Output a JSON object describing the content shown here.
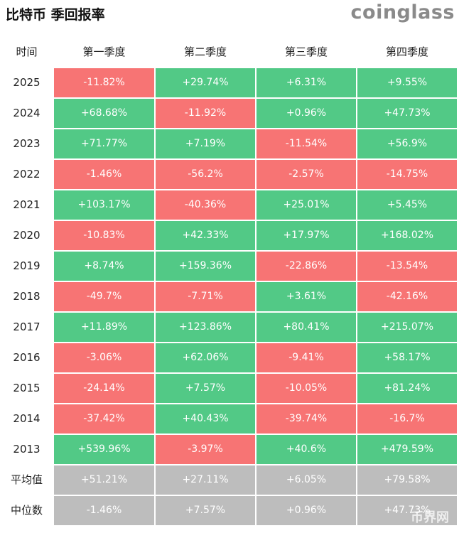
{
  "header": {
    "title": "比特币 季回报率",
    "logo": "coinglass"
  },
  "table": {
    "columns": [
      "时间",
      "第一季度",
      "第二季度",
      "第三季度",
      "第四季度"
    ],
    "rows": [
      [
        "2025",
        "-11.82%",
        "+29.74%",
        "+6.31%",
        "+9.55%"
      ],
      [
        "2024",
        "+68.68%",
        "-11.92%",
        "+0.96%",
        "+47.73%"
      ],
      [
        "2023",
        "+71.77%",
        "+7.19%",
        "-11.54%",
        "+56.9%"
      ],
      [
        "2022",
        "-1.46%",
        "-56.2%",
        "-2.57%",
        "-14.75%"
      ],
      [
        "2021",
        "+103.17%",
        "-40.36%",
        "+25.01%",
        "+5.45%"
      ],
      [
        "2020",
        "-10.83%",
        "+42.33%",
        "+17.97%",
        "+168.02%"
      ],
      [
        "2019",
        "+8.74%",
        "+159.36%",
        "-22.86%",
        "-13.54%"
      ],
      [
        "2018",
        "-49.7%",
        "-7.71%",
        "+3.61%",
        "-42.16%"
      ],
      [
        "2017",
        "+11.89%",
        "+123.86%",
        "+80.41%",
        "+215.07%"
      ],
      [
        "2016",
        "-3.06%",
        "+62.06%",
        "-9.41%",
        "+58.17%"
      ],
      [
        "2015",
        "-24.14%",
        "+7.57%",
        "-10.05%",
        "+81.24%"
      ],
      [
        "2014",
        "-37.42%",
        "+40.43%",
        "-39.74%",
        "-16.7%"
      ],
      [
        "2013",
        "+539.96%",
        "-3.97%",
        "+40.6%",
        "+479.59%"
      ]
    ],
    "summary": [
      [
        "平均值",
        "+51.21%",
        "+27.11%",
        "+6.05%",
        "+79.58%"
      ],
      [
        "中位数",
        "-1.46%",
        "+7.57%",
        "+0.96%",
        "+47.73%"
      ]
    ]
  },
  "watermark": "币界网"
}
